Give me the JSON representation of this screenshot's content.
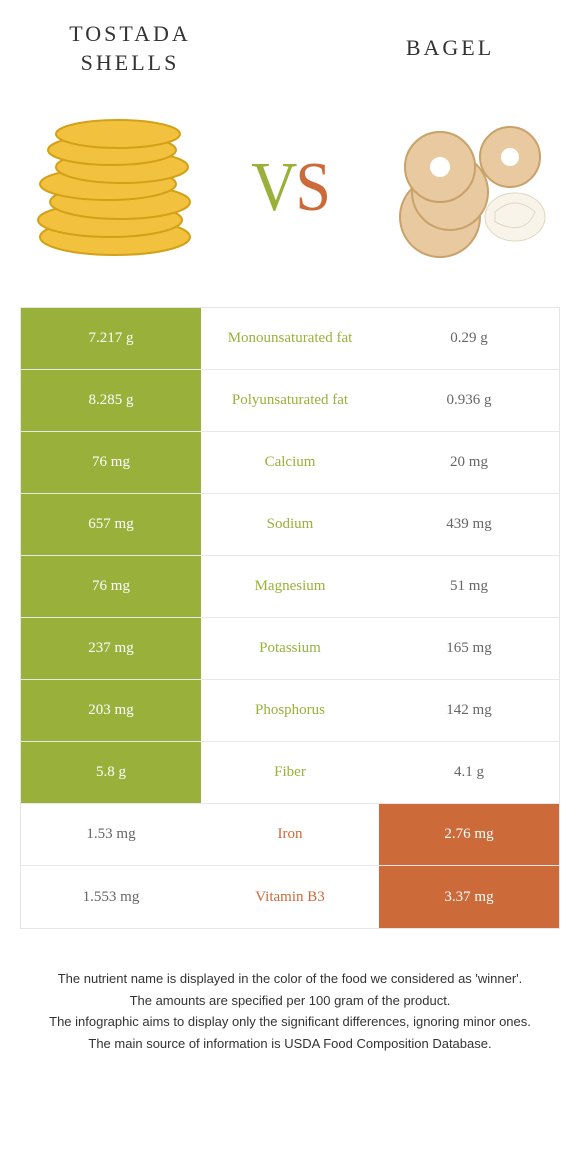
{
  "foods": {
    "left": {
      "name": "Tostada shells",
      "color": "#99b13a"
    },
    "right": {
      "name": "Bagel",
      "color": "#cc6a3a"
    }
  },
  "vs_label": {
    "v": "V",
    "s": "S"
  },
  "colors": {
    "left_win_bg": "#99b13a",
    "right_win_bg": "#cc6a3a",
    "neutral_text": "#666666",
    "mid_left_color": "#99b13a",
    "mid_right_color": "#cc6a3a",
    "border": "#e5e5e5",
    "background": "#ffffff"
  },
  "rows": [
    {
      "nutrient": "Monounsaturated fat",
      "left": "7.217 g",
      "right": "0.29 g",
      "winner": "left"
    },
    {
      "nutrient": "Polyunsaturated fat",
      "left": "8.285 g",
      "right": "0.936 g",
      "winner": "left"
    },
    {
      "nutrient": "Calcium",
      "left": "76 mg",
      "right": "20 mg",
      "winner": "left"
    },
    {
      "nutrient": "Sodium",
      "left": "657 mg",
      "right": "439 mg",
      "winner": "left"
    },
    {
      "nutrient": "Magnesium",
      "left": "76 mg",
      "right": "51 mg",
      "winner": "left"
    },
    {
      "nutrient": "Potassium",
      "left": "237 mg",
      "right": "165 mg",
      "winner": "left"
    },
    {
      "nutrient": "Phosphorus",
      "left": "203 mg",
      "right": "142 mg",
      "winner": "left"
    },
    {
      "nutrient": "Fiber",
      "left": "5.8 g",
      "right": "4.1 g",
      "winner": "left"
    },
    {
      "nutrient": "Iron",
      "left": "1.53 mg",
      "right": "2.76 mg",
      "winner": "right"
    },
    {
      "nutrient": "Vitamin B3",
      "left": "1.553 mg",
      "right": "3.37 mg",
      "winner": "right"
    }
  ],
  "footnotes": [
    "The nutrient name is displayed in the color of the food we considered as 'winner'.",
    "The amounts are specified per 100 gram of the product.",
    "The infographic aims to display only the significant differences, ignoring minor ones.",
    "The main source of information is USDA Food Composition Database."
  ]
}
